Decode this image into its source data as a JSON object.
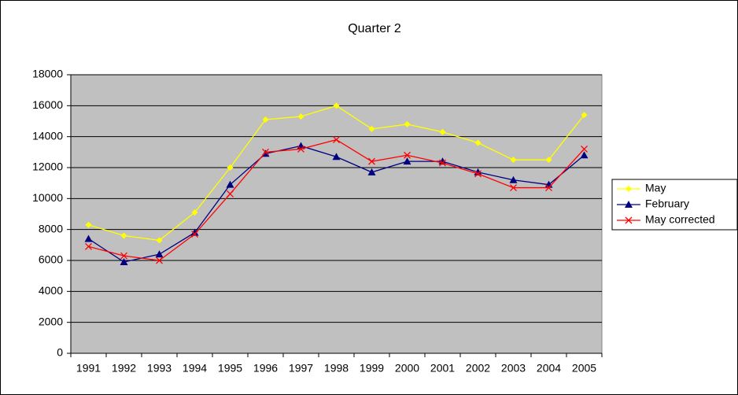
{
  "chart_data": {
    "type": "line",
    "title": "Quarter 2",
    "categories": [
      "1991",
      "1992",
      "1993",
      "1994",
      "1995",
      "1996",
      "1997",
      "1998",
      "1999",
      "2000",
      "2001",
      "2002",
      "2003",
      "2004",
      "2005"
    ],
    "series": [
      {
        "name": "May",
        "color": "#ffff00",
        "marker": "diamond",
        "values": [
          8300,
          7600,
          7300,
          9100,
          12000,
          15100,
          15300,
          16000,
          14500,
          14800,
          14300,
          13600,
          12500,
          12500,
          15400
        ]
      },
      {
        "name": "February",
        "color": "#000080",
        "marker": "triangle",
        "values": [
          7400,
          5900,
          6400,
          7800,
          10900,
          12900,
          13400,
          12700,
          11700,
          12400,
          12400,
          11700,
          11200,
          10900,
          12800
        ]
      },
      {
        "name": "May corrected",
        "color": "#ff0000",
        "marker": "x",
        "values": [
          6900,
          6300,
          6000,
          7700,
          10300,
          13000,
          13200,
          13800,
          12400,
          12800,
          12300,
          11600,
          10700,
          10700,
          13200
        ]
      }
    ],
    "ylim": [
      0,
      18000
    ],
    "yticks": [
      0,
      2000,
      4000,
      6000,
      8000,
      10000,
      12000,
      14000,
      16000,
      18000
    ],
    "grid": true,
    "legend": "right",
    "plot_background": "#c0c0c0"
  }
}
